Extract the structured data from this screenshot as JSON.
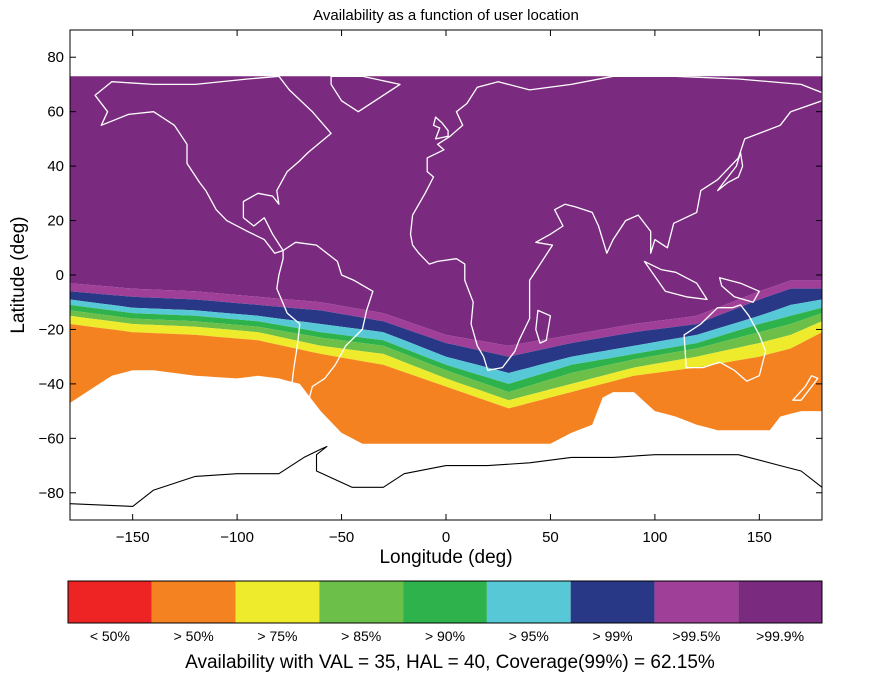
{
  "chart_data": {
    "type": "heatmap",
    "title": "Availability as a function of user location",
    "xlabel": "Longitude (deg)",
    "ylabel": "Latitude (deg)",
    "xlim": [
      -180,
      180
    ],
    "ylim": [
      -90,
      90
    ],
    "xticks": [
      -150,
      -100,
      -50,
      0,
      50,
      100,
      150
    ],
    "yticks": [
      -80,
      -60,
      -40,
      -20,
      0,
      20,
      40,
      60,
      80
    ],
    "xtick_labels": [
      "−150",
      "−100",
      "−50",
      "0",
      "50",
      "100",
      "150"
    ],
    "ytick_labels": [
      "−80",
      "−60",
      "−40",
      "−20",
      "0",
      "20",
      "40",
      "60",
      "80"
    ],
    "grid": false,
    "overlay": "coastlines and country borders",
    "color_scale": [
      {
        "label": "<  50%",
        "color": "#ee2324"
      },
      {
        "label": ">  50%",
        "color": "#f58220"
      },
      {
        "label": ">  75%",
        "color": "#eeea2c"
      },
      {
        "label": ">  85%",
        "color": "#6cc04a"
      },
      {
        "label": ">  90%",
        "color": "#2eb24b"
      },
      {
        "label": ">  95%",
        "color": "#57c8d5"
      },
      {
        "label": ">  99%",
        "color": "#283887"
      },
      {
        "label": ">99.5%",
        "color": "#9f3f98"
      },
      {
        "label": ">99.9%",
        "color": "#7a2a7f"
      }
    ],
    "coverage_area": {
      "north_limit": 73,
      "south_limit_by_longitude": {
        "longitudes": [
          -180,
          -170,
          -160,
          -150,
          -140,
          -120,
          -100,
          -90,
          -80,
          -70,
          -60,
          -50,
          -40,
          -30,
          -20,
          -10,
          0,
          10,
          20,
          30,
          40,
          50,
          60,
          70,
          75,
          80,
          90,
          100,
          110,
          120,
          130,
          140,
          150,
          155,
          160,
          170,
          180
        ],
        "latitudes": [
          -47,
          -42,
          -37,
          -35,
          -35,
          -37,
          -38,
          -37,
          -38,
          -40,
          -50,
          -58,
          -62,
          -62,
          -62,
          -62,
          -62,
          -62,
          -62,
          -62,
          -62,
          -62,
          -58,
          -55,
          -45,
          -43,
          -43,
          -50,
          -52,
          -55,
          -57,
          -57,
          -57,
          -57,
          -52,
          -50,
          -50
        ]
      },
      "band_boundaries_latitude_at": {
        "longitudes": [
          -180,
          -150,
          -120,
          -90,
          -60,
          -30,
          0,
          30,
          60,
          90,
          120,
          150,
          165,
          180
        ],
        "boundaries": [
          {
            "above": ">99.5%",
            "values": [
              -3,
              -5,
              -6,
              -8,
              -10,
              -14,
              -22,
              -26,
              -22,
              -18,
              -15,
              -6,
              -2,
              -2
            ]
          },
          {
            "above": ">  99%",
            "values": [
              -6,
              -8,
              -9,
              -11,
              -13,
              -17,
              -25,
              -30,
              -25,
              -21,
              -18,
              -9,
              -5,
              -5
            ]
          },
          {
            "above": ">  95%",
            "values": [
              -9,
              -12,
              -13,
              -15,
              -18,
              -21,
              -30,
              -36,
              -30,
              -26,
              -22,
              -15,
              -11,
              -9
            ]
          },
          {
            "above": ">  90%",
            "values": [
              -11,
              -14,
              -15,
              -17,
              -21,
              -24,
              -33,
              -40,
              -33,
              -29,
              -25,
              -18,
              -15,
              -12
            ]
          },
          {
            "above": ">  85%",
            "values": [
              -13,
              -16,
              -17,
              -19,
              -23,
              -26,
              -35,
              -43,
              -36,
              -31,
              -27,
              -21,
              -18,
              -14
            ]
          },
          {
            "above": ">  75%",
            "values": [
              -15,
              -18,
              -19,
              -21,
              -26,
              -29,
              -38,
              -46,
              -40,
              -34,
              -30,
              -25,
              -22,
              -17
            ]
          },
          {
            "above": ">  50%",
            "values": [
              -18,
              -21,
              -22,
              -24,
              -29,
              -33,
              -41,
              -49,
              -43,
              -37,
              -34,
              -30,
              -27,
              -21
            ]
          }
        ]
      }
    },
    "colorbar_caption": "Availability with VAL = 35,  HAL = 40, Coverage(99%) = 62.15%"
  }
}
